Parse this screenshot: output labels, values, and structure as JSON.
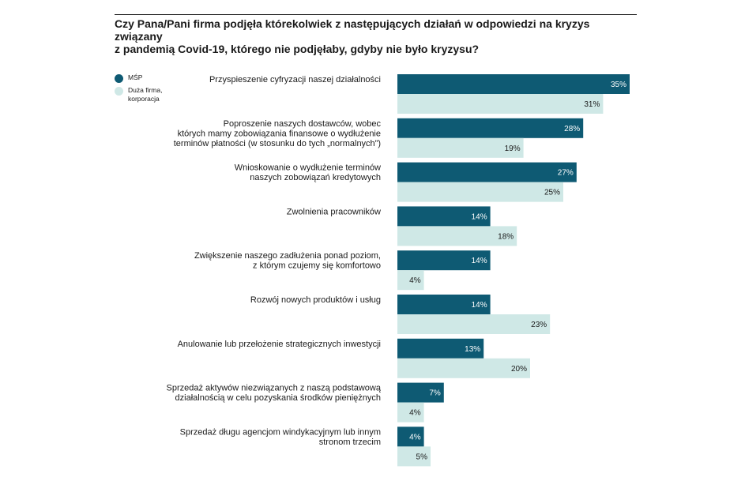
{
  "colors": {
    "msp": "#0e5a73",
    "large": "#cfe8e6",
    "msp_text": "#ffffff",
    "large_text": "#1a1a1a"
  },
  "chart_data": {
    "type": "bar",
    "orientation": "horizontal",
    "title": "Czy Pana/Pani firma podjęła którekolwiek z następujących działań w odpowiedzi na kryzys związany z pandemią Covid-19, którego nie podjęłaby, gdyby nie było kryzysu?",
    "title_lines": [
      "Czy Pana/Pani firma podjęła którekolwiek z następujących działań w odpowiedzi na kryzys związany",
      "z pandemią Covid-19, którego nie podjęłaby, gdyby nie było kryzysu?"
    ],
    "legend": "top-left",
    "xlim": [
      0,
      35
    ],
    "grid": false,
    "categories": [
      [
        "Przyspieszenie cyfryzacji naszej działalności"
      ],
      [
        "Poproszenie naszych dostawców, wobec",
        "których mamy zobowiązania finansowe o wydłużenie",
        "terminów płatności (w stosunku do tych „normalnych”)"
      ],
      [
        "Wnioskowanie o wydłużenie terminów",
        "naszych zobowiązań kredytowych"
      ],
      [
        "Zwolnienia pracowników"
      ],
      [
        "Zwiększenie naszego zadłużenia ponad poziom,",
        "z którym czujemy się komfortowo"
      ],
      [
        "Rozwój nowych produktów i usług"
      ],
      [
        "Anulowanie lub przełożenie strategicznych inwestycji"
      ],
      [
        "Sprzedaż aktywów niezwiązanych z naszą podstawową",
        "działalnością w celu pozyskania środków pieniężnych"
      ],
      [
        "Sprzedaż długu agencjom windykacyjnym lub innym",
        "stronom trzecim"
      ]
    ],
    "series": [
      {
        "name": "MŚP",
        "values": [
          35,
          28,
          27,
          14,
          14,
          14,
          13,
          7,
          4
        ],
        "labels": [
          "35%",
          "28%",
          "27%",
          "14%",
          "14%",
          "14%",
          "13%",
          "7%",
          "4%"
        ]
      },
      {
        "name_lines": [
          "Duża firma,",
          "korporacja"
        ],
        "values": [
          31,
          19,
          25,
          18,
          4,
          23,
          20,
          4,
          5
        ],
        "labels": [
          "31%",
          "19%",
          "25%",
          "18%",
          "4%",
          "23%",
          "20%",
          "4%",
          "5%"
        ]
      }
    ]
  }
}
